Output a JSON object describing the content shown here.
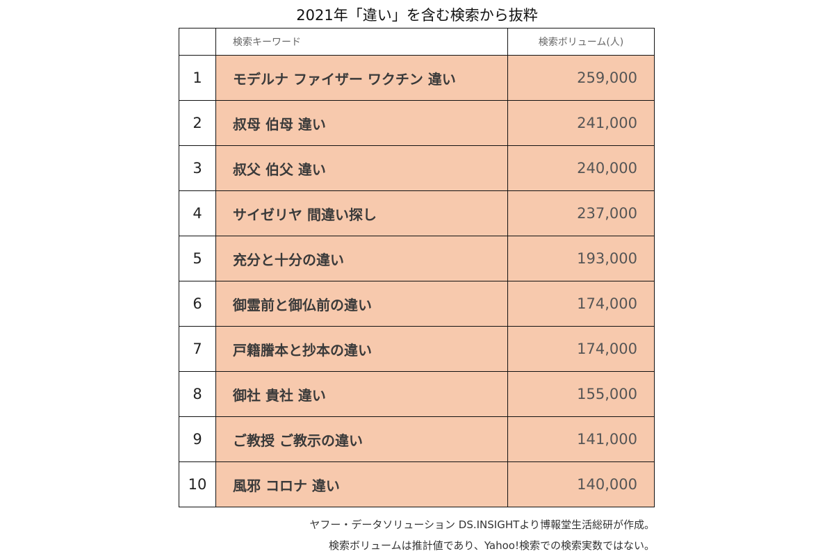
{
  "title": "2021年「違い」を含む検索から抜粋",
  "table": {
    "headers": {
      "rank": "",
      "keyword": "検索キーワード",
      "volume": "検索ボリューム(人)"
    },
    "rows": [
      {
        "rank": "1",
        "keyword": "モデルナ ファイザー ワクチン 違い",
        "volume": "259,000"
      },
      {
        "rank": "2",
        "keyword": "叔母 伯母 違い",
        "volume": "241,000"
      },
      {
        "rank": "3",
        "keyword": "叔父 伯父 違い",
        "volume": "240,000"
      },
      {
        "rank": "4",
        "keyword": "サイゼリヤ 間違い探し",
        "volume": "237,000"
      },
      {
        "rank": "5",
        "keyword": "充分と十分の違い",
        "volume": "193,000"
      },
      {
        "rank": "6",
        "keyword": "御霊前と御仏前の違い",
        "volume": "174,000"
      },
      {
        "rank": "7",
        "keyword": "戸籍謄本と抄本の違い",
        "volume": "174,000"
      },
      {
        "rank": "8",
        "keyword": "御社 貴社 違い",
        "volume": "155,000"
      },
      {
        "rank": "9",
        "keyword": "ご教授 ご教示の違い",
        "volume": "141,000"
      },
      {
        "rank": "10",
        "keyword": "風邪 コロナ 違い",
        "volume": "140,000"
      }
    ]
  },
  "footnotes": [
    "ヤフー・データソリューション DS.INSIGHTより博報堂生活総研が作成。",
    "検索ボリュームは推計値であり、Yahoo!検索での検索実数ではない。"
  ],
  "colors": {
    "highlight": "#f7c9ad",
    "border": "#111111"
  }
}
